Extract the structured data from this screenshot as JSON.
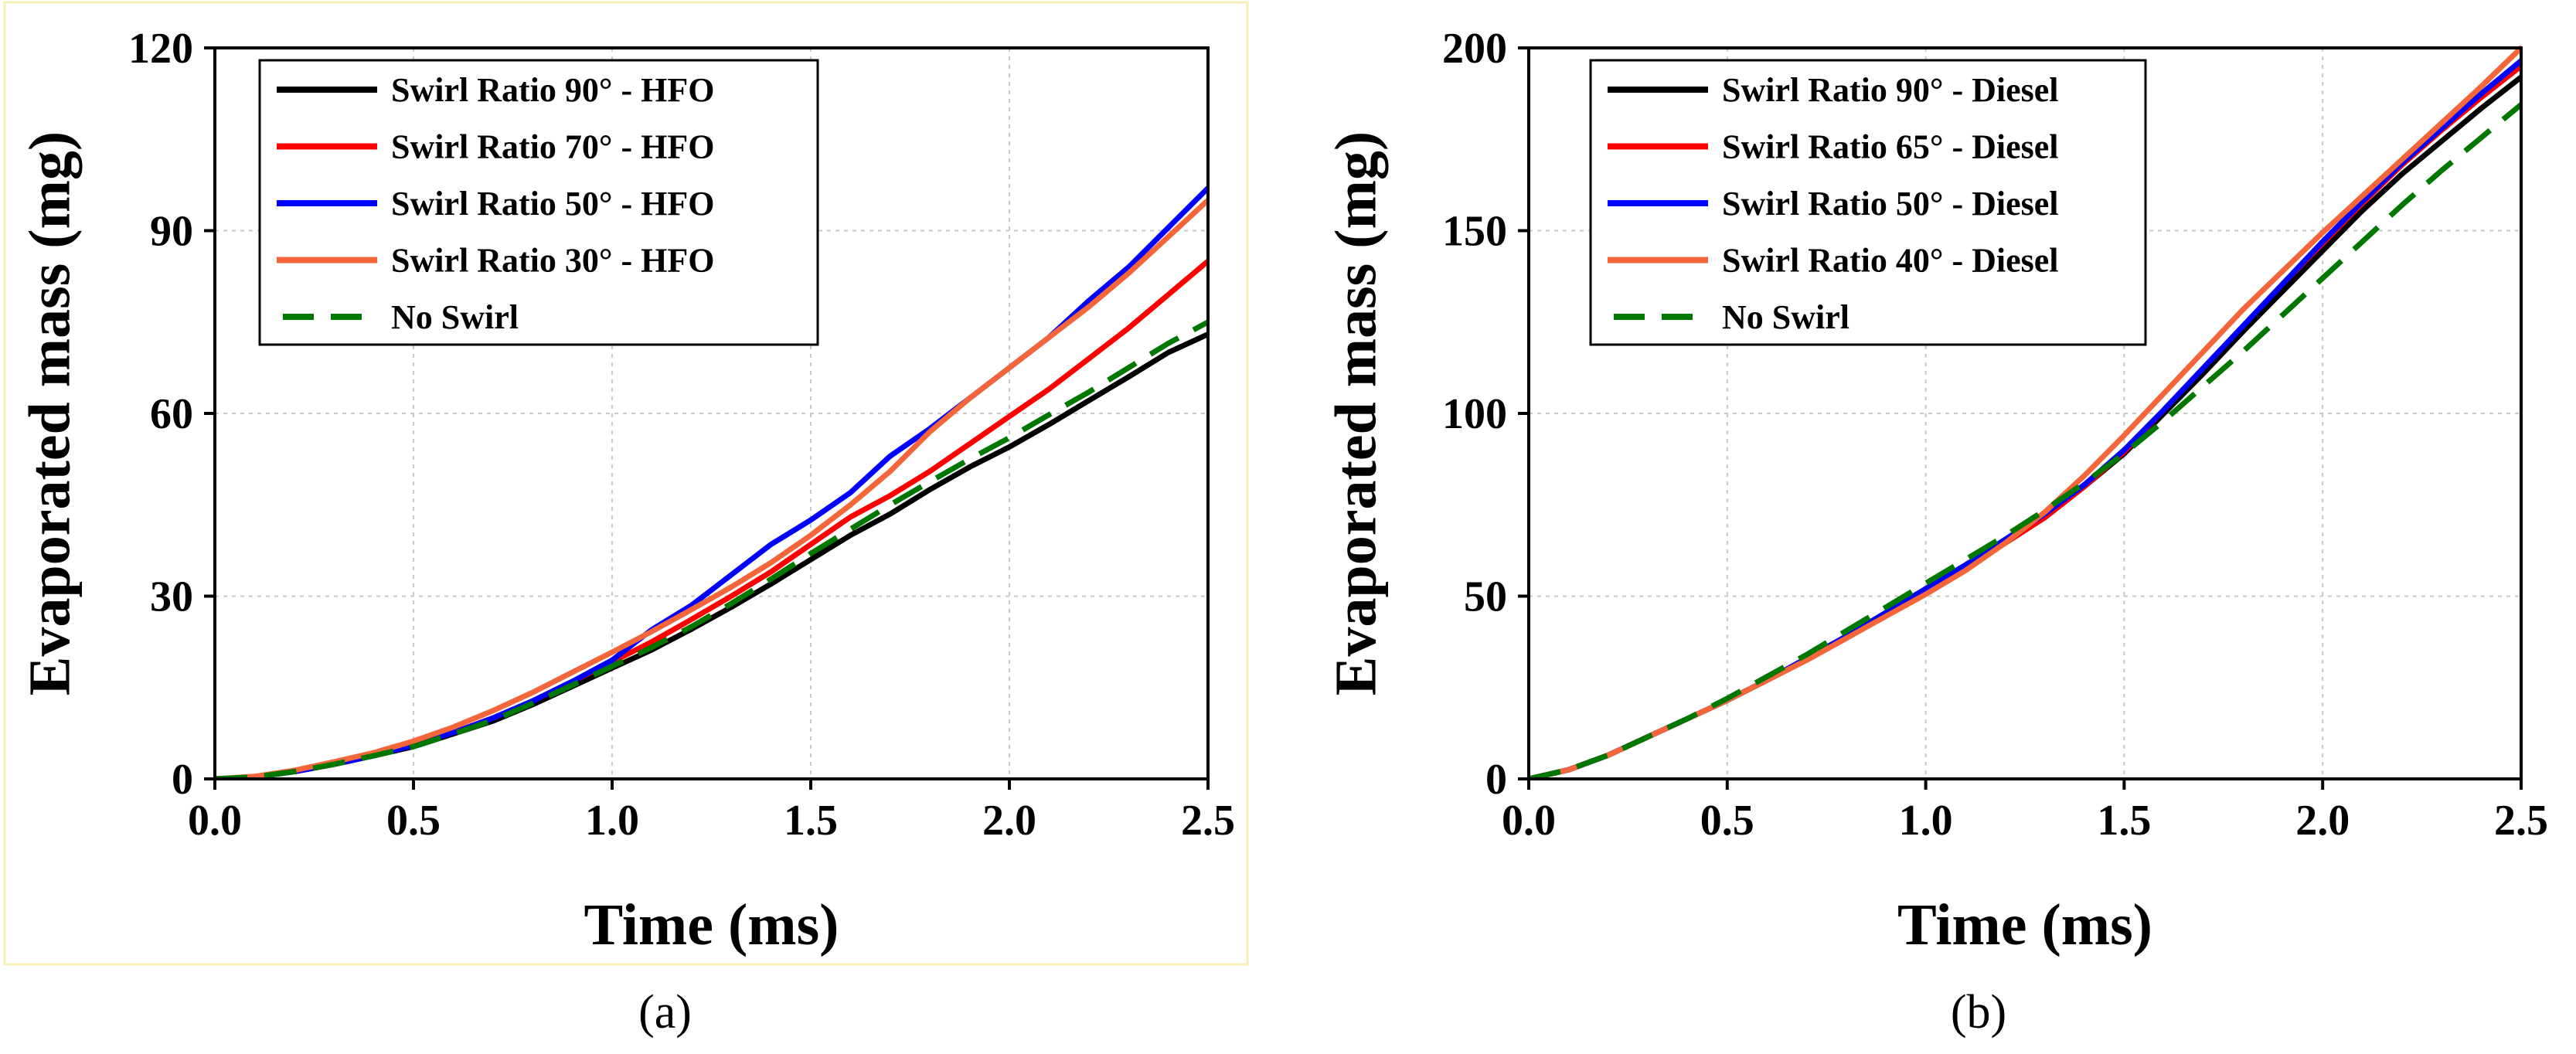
{
  "chart_data": [
    {
      "type": "line",
      "panel_label": "(a)",
      "xlabel": "Time (ms)",
      "ylabel": "Evaporated mass (mg)",
      "xlim": [
        0,
        2.5
      ],
      "ylim": [
        0,
        120
      ],
      "xticks": [
        "0.0",
        "0.5",
        "1.0",
        "1.5",
        "2.0",
        "2.5"
      ],
      "yticks": [
        "0",
        "30",
        "60",
        "90",
        "120"
      ],
      "grid": true,
      "legend_position": "top-left",
      "series": [
        {
          "name": "Swirl Ratio 90°  - HFO",
          "color": "#000000",
          "dash": "solid",
          "x": [
            0,
            0.1,
            0.2,
            0.3,
            0.4,
            0.5,
            0.6,
            0.7,
            0.8,
            0.9,
            1.0,
            1.1,
            1.2,
            1.3,
            1.4,
            1.5,
            1.6,
            1.7,
            1.8,
            1.9,
            2.0,
            2.1,
            2.2,
            2.3,
            2.4,
            2.5
          ],
          "y": [
            0,
            0.3,
            1.2,
            2.4,
            3.8,
            5.3,
            7.4,
            9.5,
            12.2,
            15.2,
            18.2,
            21.2,
            24.6,
            28.2,
            32,
            36,
            40,
            43.5,
            47.5,
            51.2,
            54.5,
            58.2,
            62.1,
            66,
            70,
            73
          ]
        },
        {
          "name": "Swirl Ratio 70°  - HFO",
          "color": "#ff0000",
          "dash": "solid",
          "x": [
            0,
            0.1,
            0.2,
            0.3,
            0.4,
            0.5,
            0.6,
            0.7,
            0.8,
            0.9,
            1.0,
            1.1,
            1.2,
            1.3,
            1.4,
            1.5,
            1.6,
            1.7,
            1.8,
            1.9,
            2.0,
            2.1,
            2.2,
            2.3,
            2.4,
            2.5
          ],
          "y": [
            0,
            0.3,
            1.2,
            2.4,
            3.8,
            5.5,
            7.6,
            10,
            12.8,
            16,
            19.2,
            22.5,
            26.2,
            30,
            34,
            38.5,
            43,
            46.5,
            50.5,
            55,
            59.5,
            64,
            69,
            74,
            79.5,
            85
          ]
        },
        {
          "name": "Swirl Ratio 50°  - HFO",
          "color": "#0000ff",
          "dash": "solid",
          "x": [
            0,
            0.1,
            0.2,
            0.3,
            0.4,
            0.5,
            0.6,
            0.7,
            0.8,
            0.9,
            1.0,
            1.1,
            1.2,
            1.3,
            1.4,
            1.5,
            1.6,
            1.7,
            1.8,
            1.9,
            2.0,
            2.1,
            2.2,
            2.3,
            2.4,
            2.5
          ],
          "y": [
            0,
            0.3,
            1.2,
            2.4,
            3.8,
            5.5,
            7.6,
            10,
            12.8,
            16,
            19.5,
            24.5,
            28.5,
            33.5,
            38.5,
            42.5,
            47,
            53,
            57.5,
            62.5,
            67.5,
            72.5,
            78.5,
            84,
            90.5,
            97
          ]
        },
        {
          "name": "Swirl Ratio 30°  - HFO",
          "color": "#f4653a",
          "dash": "solid",
          "x": [
            0,
            0.1,
            0.2,
            0.3,
            0.4,
            0.5,
            0.6,
            0.7,
            0.8,
            0.9,
            1.0,
            1.1,
            1.2,
            1.3,
            1.4,
            1.5,
            1.6,
            1.7,
            1.8,
            1.9,
            2.0,
            2.1,
            2.2,
            2.3,
            2.4,
            2.5
          ],
          "y": [
            0,
            0.4,
            1.4,
            2.8,
            4.3,
            6.2,
            8.5,
            11.2,
            14.2,
            17.5,
            20.8,
            24.2,
            27.8,
            31.5,
            35.5,
            40,
            45,
            50.5,
            57,
            62.5,
            67.5,
            72.5,
            77.5,
            83,
            89,
            95
          ]
        },
        {
          "name": "No Swirl",
          "color": "#007800",
          "dash": "dashed",
          "x": [
            0,
            0.1,
            0.2,
            0.3,
            0.4,
            0.5,
            0.6,
            0.7,
            0.8,
            0.9,
            1.0,
            1.1,
            1.2,
            1.3,
            1.4,
            1.5,
            1.6,
            1.7,
            1.8,
            1.9,
            2.0,
            2.1,
            2.2,
            2.3,
            2.4,
            2.5
          ],
          "y": [
            0,
            0.3,
            1.2,
            2.4,
            3.8,
            5.3,
            7.4,
            9.6,
            12.4,
            15.4,
            18.5,
            21.6,
            25,
            28.8,
            32.8,
            37,
            41,
            45,
            48.8,
            52.5,
            56,
            59.8,
            63.5,
            67.5,
            71.5,
            75
          ]
        }
      ]
    },
    {
      "type": "line",
      "panel_label": "(b)",
      "xlabel": "Time (ms)",
      "ylabel": "Evaporated mass (mg)",
      "xlim": [
        0,
        2.5
      ],
      "ylim": [
        0,
        200
      ],
      "xticks": [
        "0.0",
        "0.5",
        "1.0",
        "1.5",
        "2.0",
        "2.5"
      ],
      "yticks": [
        "0",
        "50",
        "100",
        "150",
        "200"
      ],
      "grid": true,
      "legend_position": "top-left",
      "series": [
        {
          "name": "Swirl Ratio 90°  - Diesel",
          "color": "#000000",
          "dash": "solid",
          "x": [
            0,
            0.1,
            0.2,
            0.3,
            0.4,
            0.5,
            0.6,
            0.7,
            0.8,
            0.9,
            1.0,
            1.1,
            1.2,
            1.3,
            1.4,
            1.5,
            1.6,
            1.7,
            1.8,
            1.9,
            2.0,
            2.1,
            2.2,
            2.3,
            2.4,
            2.5
          ],
          "y": [
            0,
            2.5,
            6.5,
            11.5,
            16.5,
            21.5,
            27,
            33,
            39,
            45.5,
            52,
            58.5,
            65,
            71.5,
            80,
            89,
            100,
            111,
            122.5,
            133.5,
            144.5,
            155.5,
            165.5,
            174.5,
            183.5,
            192
          ]
        },
        {
          "name": "Swirl Ratio 65°  - Diesel",
          "color": "#ff0000",
          "dash": "solid",
          "x": [
            0,
            0.1,
            0.2,
            0.3,
            0.4,
            0.5,
            0.6,
            0.7,
            0.8,
            0.9,
            1.0,
            1.1,
            1.2,
            1.3,
            1.4,
            1.5,
            1.6,
            1.7,
            1.8,
            1.9,
            2.0,
            2.1,
            2.2,
            2.3,
            2.4,
            2.5
          ],
          "y": [
            0,
            2.5,
            6.5,
            11.5,
            16.5,
            21.5,
            27,
            32.5,
            38.5,
            45,
            51,
            57.5,
            64.5,
            71.5,
            80,
            89.5,
            101,
            112.5,
            124,
            135.5,
            146.5,
            157.5,
            168,
            177.5,
            186.5,
            195
          ]
        },
        {
          "name": "Swirl Ratio 50°  - Diesel",
          "color": "#0000ff",
          "dash": "solid",
          "x": [
            0,
            0.1,
            0.2,
            0.3,
            0.4,
            0.5,
            0.6,
            0.7,
            0.8,
            0.9,
            1.0,
            1.1,
            1.2,
            1.3,
            1.4,
            1.5,
            1.6,
            1.7,
            1.8,
            1.9,
            2.0,
            2.1,
            2.2,
            2.3,
            2.4,
            2.5
          ],
          "y": [
            0,
            2.5,
            6.5,
            11.5,
            16.5,
            21.5,
            27,
            33,
            39,
            45.5,
            52,
            58.5,
            65.5,
            72.5,
            80.5,
            90,
            101,
            112.5,
            124,
            135.5,
            147,
            158,
            168.5,
            178,
            187.5,
            196.5
          ]
        },
        {
          "name": "Swirl Ratio 40°  - Diesel",
          "color": "#f4653a",
          "dash": "solid",
          "x": [
            0,
            0.1,
            0.2,
            0.3,
            0.4,
            0.5,
            0.6,
            0.7,
            0.8,
            0.9,
            1.0,
            1.1,
            1.2,
            1.3,
            1.4,
            1.5,
            1.6,
            1.7,
            1.8,
            1.9,
            2.0,
            2.1,
            2.2,
            2.3,
            2.4,
            2.5
          ],
          "y": [
            0,
            2.5,
            6.5,
            11.5,
            16.5,
            21.5,
            27,
            32.5,
            38.5,
            44.5,
            50.5,
            57,
            64.5,
            73,
            83,
            94,
            105.5,
            117,
            128.5,
            139,
            149.5,
            159.5,
            169.5,
            179.5,
            189.5,
            200
          ]
        },
        {
          "name": "No Swirl",
          "color": "#007800",
          "dash": "dashed",
          "x": [
            0,
            0.1,
            0.2,
            0.3,
            0.4,
            0.5,
            0.6,
            0.7,
            0.8,
            0.9,
            1.0,
            1.1,
            1.2,
            1.3,
            1.4,
            1.5,
            1.6,
            1.7,
            1.8,
            1.9,
            2.0,
            2.1,
            2.2,
            2.3,
            2.4,
            2.5
          ],
          "y": [
            0,
            2.5,
            6.5,
            11.5,
            16.5,
            22,
            28,
            34,
            40.5,
            47,
            53.5,
            60,
            66.5,
            73.5,
            81,
            89,
            98,
            107.5,
            117,
            127,
            137,
            147,
            157,
            166.5,
            175.5,
            184.5
          ]
        }
      ]
    }
  ]
}
